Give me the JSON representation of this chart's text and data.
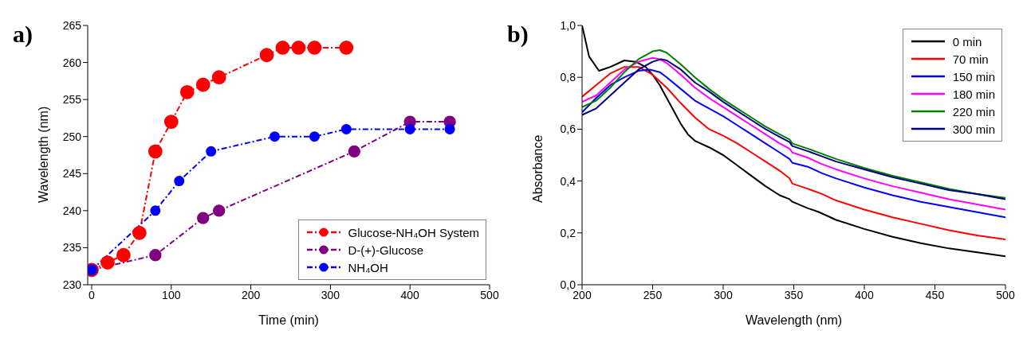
{
  "chart_data": [
    {
      "type": "line",
      "title": "a)",
      "xlabel": "Time (min)",
      "ylabel": "Wavelength (nm)",
      "xlim": [
        -5,
        500
      ],
      "xticks": [
        0,
        100,
        200,
        300,
        400,
        500
      ],
      "ylim": [
        230,
        265
      ],
      "yticks": [
        230,
        235,
        240,
        245,
        250,
        255,
        260,
        265
      ],
      "grid": false,
      "legend": "bottom right",
      "marker": "circle",
      "line_style": "dashed",
      "series": [
        {
          "name": "Glucose-NH₄OH System",
          "color": "#ff0000",
          "x": [
            0,
            20,
            40,
            60,
            80,
            100,
            120,
            140,
            160,
            220,
            240,
            260,
            280,
            320
          ],
          "values": [
            232,
            233,
            234,
            237,
            248,
            252,
            256,
            257,
            258,
            261,
            262,
            262,
            262,
            262
          ]
        },
        {
          "name": "D-(+)-Glucose",
          "color": "#800080",
          "x": [
            0,
            80,
            140,
            160,
            330,
            400,
            450
          ],
          "values": [
            232,
            234,
            239,
            240,
            248,
            252,
            252
          ]
        },
        {
          "name": "NH₄OH",
          "color": "#0000ff",
          "x": [
            0,
            80,
            110,
            150,
            230,
            280,
            320,
            400,
            450
          ],
          "values": [
            232,
            240,
            244,
            248,
            250,
            250,
            251,
            251,
            251
          ]
        }
      ]
    },
    {
      "type": "line",
      "title": "b)",
      "xlabel": "Wavelength (nm)",
      "ylabel": "Absorbance",
      "xlim": [
        200,
        500
      ],
      "xticks": [
        200,
        250,
        300,
        350,
        400,
        450,
        500
      ],
      "ylim": [
        0,
        1.0
      ],
      "yticks": [
        {
          "value": 0,
          "label": "0,0"
        },
        {
          "value": 0.2,
          "label": "0,2"
        },
        {
          "value": 0.4,
          "label": "0,4"
        },
        {
          "value": 0.6,
          "label": "0,6"
        },
        {
          "value": 0.8,
          "label": "0,8"
        },
        {
          "value": 1.0,
          "label": "1,0"
        }
      ],
      "grid": false,
      "legend": "top right",
      "marker": "none",
      "line_style": "solid",
      "series": [
        {
          "name": "0 min",
          "color": "#000000",
          "x": [
            200,
            205,
            212,
            220,
            230,
            238,
            245,
            250,
            255,
            260,
            265,
            270,
            275,
            280,
            290,
            300,
            310,
            320,
            330,
            340,
            347,
            349,
            360,
            368,
            380,
            400,
            420,
            440,
            460,
            480,
            500
          ],
          "values": [
            1.0,
            0.88,
            0.825,
            0.84,
            0.865,
            0.86,
            0.84,
            0.81,
            0.77,
            0.72,
            0.67,
            0.62,
            0.58,
            0.555,
            0.53,
            0.5,
            0.46,
            0.42,
            0.38,
            0.345,
            0.33,
            0.32,
            0.295,
            0.28,
            0.25,
            0.215,
            0.185,
            0.16,
            0.14,
            0.125,
            0.11
          ]
        },
        {
          "name": "70 min",
          "color": "#ff0000",
          "x": [
            200,
            210,
            220,
            230,
            240,
            250,
            260,
            270,
            280,
            290,
            300,
            310,
            320,
            330,
            340,
            347,
            349,
            360,
            370,
            380,
            400,
            420,
            440,
            460,
            480,
            500
          ],
          "values": [
            0.725,
            0.77,
            0.815,
            0.84,
            0.84,
            0.81,
            0.76,
            0.7,
            0.645,
            0.6,
            0.575,
            0.545,
            0.51,
            0.475,
            0.44,
            0.41,
            0.39,
            0.37,
            0.35,
            0.325,
            0.29,
            0.26,
            0.235,
            0.21,
            0.19,
            0.175
          ]
        },
        {
          "name": "150 min",
          "color": "#0000ff",
          "x": [
            200,
            210,
            220,
            230,
            240,
            248,
            255,
            260,
            270,
            280,
            290,
            300,
            310,
            320,
            330,
            340,
            347,
            349,
            360,
            370,
            380,
            400,
            420,
            440,
            460,
            480,
            500
          ],
          "values": [
            0.665,
            0.72,
            0.77,
            0.8,
            0.825,
            0.83,
            0.82,
            0.8,
            0.755,
            0.71,
            0.68,
            0.65,
            0.615,
            0.58,
            0.545,
            0.51,
            0.485,
            0.47,
            0.455,
            0.43,
            0.41,
            0.375,
            0.345,
            0.32,
            0.3,
            0.28,
            0.26
          ]
        },
        {
          "name": "180 min",
          "color": "#ff00ff",
          "x": [
            200,
            210,
            220,
            230,
            240,
            250,
            255,
            260,
            270,
            280,
            290,
            300,
            310,
            320,
            330,
            340,
            347,
            349,
            360,
            370,
            380,
            400,
            420,
            440,
            460,
            480,
            500
          ],
          "values": [
            0.705,
            0.73,
            0.78,
            0.83,
            0.86,
            0.875,
            0.87,
            0.855,
            0.81,
            0.76,
            0.72,
            0.685,
            0.65,
            0.615,
            0.58,
            0.545,
            0.525,
            0.51,
            0.49,
            0.465,
            0.445,
            0.41,
            0.38,
            0.355,
            0.33,
            0.31,
            0.29
          ]
        },
        {
          "name": "220 min",
          "color": "#008000",
          "x": [
            200,
            210,
            220,
            230,
            240,
            250,
            255,
            260,
            270,
            280,
            290,
            300,
            310,
            320,
            330,
            340,
            347,
            349,
            360,
            370,
            380,
            400,
            420,
            440,
            460,
            480,
            500
          ],
          "values": [
            0.685,
            0.71,
            0.76,
            0.82,
            0.87,
            0.9,
            0.905,
            0.895,
            0.85,
            0.8,
            0.755,
            0.715,
            0.68,
            0.645,
            0.61,
            0.58,
            0.56,
            0.545,
            0.525,
            0.505,
            0.485,
            0.45,
            0.42,
            0.395,
            0.37,
            0.35,
            0.335
          ]
        },
        {
          "name": "300 min",
          "color": "#000080",
          "x": [
            200,
            210,
            220,
            230,
            240,
            250,
            256,
            260,
            270,
            280,
            290,
            300,
            310,
            320,
            330,
            340,
            347,
            349,
            360,
            370,
            380,
            400,
            420,
            440,
            460,
            480,
            500
          ],
          "values": [
            0.655,
            0.68,
            0.73,
            0.78,
            0.83,
            0.86,
            0.87,
            0.865,
            0.83,
            0.78,
            0.745,
            0.705,
            0.67,
            0.635,
            0.6,
            0.57,
            0.55,
            0.535,
            0.515,
            0.495,
            0.475,
            0.445,
            0.415,
            0.39,
            0.365,
            0.35,
            0.33
          ]
        }
      ]
    }
  ]
}
